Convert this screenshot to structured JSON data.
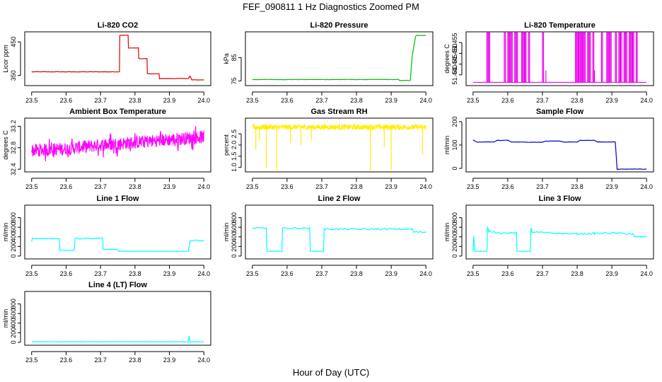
{
  "figure": {
    "title": "FEF_090811  1 Hz Diagnostics Zoomed PM",
    "xlabel": "Hour of Day (UTC)"
  },
  "chart_data": [
    {
      "type": "line",
      "title": "Li-820 CO2",
      "ylabel": "Licor ppm",
      "color": "#dd0000",
      "xlim": [
        23.48,
        24.02
      ],
      "ylim": [
        320,
        480
      ],
      "xticks": [
        "23.5",
        "23.6",
        "23.7",
        "23.8",
        "23.9",
        "24.0"
      ],
      "xtick_values": [
        23.5,
        23.6,
        23.7,
        23.8,
        23.9,
        24.0
      ],
      "yticks": [
        "350",
        "450"
      ],
      "ytick_values": [
        350,
        450
      ],
      "x": [
        23.5,
        23.755,
        23.756,
        23.78,
        23.781,
        23.81,
        23.811,
        23.835,
        23.836,
        23.87,
        23.871,
        23.955,
        23.96,
        23.965,
        24.0
      ],
      "y": [
        361,
        361,
        470,
        470,
        432,
        432,
        400,
        400,
        355,
        355,
        341,
        341,
        348,
        337,
        337
      ]
    },
    {
      "type": "line",
      "title": "Li-820 Pressure",
      "ylabel": "kPa",
      "color": "#00bb00",
      "xlim": [
        23.48,
        24.02
      ],
      "ylim": [
        73,
        96
      ],
      "xticks": [
        "23.5",
        "23.6",
        "23.7",
        "23.8",
        "23.9",
        "24.0"
      ],
      "xtick_values": [
        23.5,
        23.6,
        23.7,
        23.8,
        23.9,
        24.0
      ],
      "yticks": [
        "75",
        "85"
      ],
      "ytick_values": [
        75,
        85
      ],
      "x": [
        23.5,
        23.92,
        23.925,
        23.955,
        23.96,
        23.97,
        23.975,
        24.0
      ],
      "y": [
        75.6,
        75.6,
        75.2,
        75.2,
        85,
        94,
        94.5,
        94.5
      ]
    },
    {
      "type": "line",
      "title": "Li-820 Temperature",
      "ylabel": "degrees C",
      "color": "#ee00ee",
      "xlim": [
        23.48,
        24.02
      ],
      "ylim": [
        51.435,
        51.46
      ],
      "xticks": [
        "23.5",
        "23.6",
        "23.7",
        "23.8",
        "23.9",
        "24.0"
      ],
      "xtick_values": [
        23.5,
        23.6,
        23.7,
        23.8,
        23.9,
        24.0
      ],
      "yticks": [
        "51.440",
        "51.445",
        "51.450",
        "51.455"
      ],
      "ytick_values": [
        51.44,
        51.445,
        51.45,
        51.455
      ],
      "baseline": 51.4365,
      "spike_top": 51.4595,
      "spikes_x": [
        23.54,
        23.545,
        23.59,
        23.6,
        23.605,
        23.61,
        23.62,
        23.625,
        23.64,
        23.645,
        23.65,
        23.66,
        23.7,
        23.795,
        23.8,
        23.805,
        23.81,
        23.815,
        23.82,
        23.83,
        23.835,
        23.845,
        23.87,
        23.885,
        23.89,
        23.895,
        23.91,
        23.92,
        23.925,
        23.935,
        23.94,
        23.95,
        23.955,
        23.96,
        23.97
      ],
      "spikes_short_x": [
        23.71,
        23.85
      ],
      "spike_short_top": 51.442
    },
    {
      "type": "line",
      "title": "Ambient Box Temperature",
      "ylabel": "degrees C",
      "color": "#ff00ff",
      "xlim": [
        23.48,
        24.02
      ],
      "ylim": [
        32.35,
        33.35
      ],
      "xticks": [
        "23.5",
        "23.6",
        "23.7",
        "23.8",
        "23.9",
        "24.0"
      ],
      "xtick_values": [
        23.5,
        23.6,
        23.7,
        23.8,
        23.9,
        24.0
      ],
      "yticks": [
        "32.4",
        "32.8",
        "33.2"
      ],
      "ytick_values": [
        32.4,
        32.8,
        33.2
      ],
      "center_x": [
        23.5,
        23.6,
        23.7,
        23.8,
        23.9,
        24.0
      ],
      "center_y": [
        32.75,
        32.78,
        32.85,
        32.9,
        32.95,
        33.0
      ],
      "amplitude": 0.12
    },
    {
      "type": "line",
      "title": "Gas Stream RH",
      "ylabel": "percent",
      "color": "#ffee00",
      "xlim": [
        23.48,
        24.02
      ],
      "ylim": [
        0.8,
        3.2
      ],
      "xticks": [
        "23.5",
        "23.6",
        "23.7",
        "23.8",
        "23.9",
        "24.0"
      ],
      "xtick_values": [
        23.5,
        23.6,
        23.7,
        23.8,
        23.9,
        24.0
      ],
      "yticks": [
        "1.0",
        "1.5",
        "2.0",
        "2.5"
      ],
      "ytick_values": [
        1.0,
        1.5,
        2.0,
        2.5
      ],
      "level": 2.8,
      "amplitude": 0.12,
      "dips_x": [
        23.51,
        23.52,
        23.54,
        23.57,
        23.61,
        23.64,
        23.67,
        23.84,
        23.88,
        23.9,
        23.99
      ],
      "dips_y": [
        1.8,
        2.2,
        1.0,
        0.85,
        2.1,
        2.0,
        2.2,
        0.85,
        1.9,
        0.9,
        1.6
      ]
    },
    {
      "type": "line",
      "title": "Sample Flow",
      "ylabel": "ml/min",
      "color": "#0000cc",
      "xlim": [
        23.48,
        24.02
      ],
      "ylim": [
        -15,
        215
      ],
      "xticks": [
        "23.5",
        "23.6",
        "23.7",
        "23.8",
        "23.9",
        "24.0"
      ],
      "xtick_values": [
        23.5,
        23.6,
        23.7,
        23.8,
        23.9,
        24.0
      ],
      "yticks": [
        "0",
        "100",
        "200"
      ],
      "ytick_values": [
        0,
        100,
        200
      ],
      "x": [
        23.5,
        23.51,
        23.56,
        23.57,
        23.6,
        23.61,
        23.64,
        23.65,
        23.7,
        23.71,
        23.75,
        23.76,
        23.8,
        23.81,
        23.85,
        23.86,
        23.91,
        23.915,
        24.0
      ],
      "y": [
        122,
        113,
        113,
        120,
        120,
        113,
        113,
        112,
        112,
        117,
        117,
        113,
        113,
        120,
        120,
        113,
        113,
        -3,
        -3
      ]
    },
    {
      "type": "line",
      "title": "Line 1 Flow",
      "ylabel": "ml/min",
      "color": "#00ffff",
      "xlim": [
        23.48,
        24.02
      ],
      "ylim": [
        -60,
        1060
      ],
      "xticks": [
        "23.5",
        "23.6",
        "23.7",
        "23.8",
        "23.9",
        "24.0"
      ],
      "xtick_values": [
        23.5,
        23.6,
        23.7,
        23.8,
        23.9,
        24.0
      ],
      "yticks": [
        "0",
        "200",
        "400",
        "600",
        "800"
      ],
      "ytick_values": [
        0,
        200,
        400,
        600,
        800
      ],
      "x": [
        23.5,
        23.502,
        23.58,
        23.582,
        23.624,
        23.626,
        23.706,
        23.708,
        23.75,
        23.752,
        23.955,
        23.96,
        24.0
      ],
      "y": [
        300,
        360,
        360,
        120,
        120,
        370,
        370,
        140,
        140,
        100,
        100,
        320,
        320
      ]
    },
    {
      "type": "line",
      "title": "Line 2 Flow",
      "ylabel": "ml/min",
      "color": "#00ffff",
      "xlim": [
        23.48,
        24.02
      ],
      "ylim": [
        -60,
        1060
      ],
      "xticks": [
        "23.5",
        "23.6",
        "23.7",
        "23.8",
        "23.9",
        "24.0"
      ],
      "xtick_values": [
        23.5,
        23.6,
        23.7,
        23.8,
        23.9,
        24.0
      ],
      "yticks": [
        "0",
        "200",
        "400",
        "600",
        "800"
      ],
      "ytick_values": [
        0,
        200,
        400,
        600,
        800
      ],
      "x": [
        23.5,
        23.54,
        23.542,
        23.585,
        23.587,
        23.665,
        23.667,
        23.705,
        23.707,
        23.96,
        23.965,
        24.0
      ],
      "y": [
        580,
        580,
        100,
        100,
        580,
        580,
        100,
        100,
        560,
        560,
        500,
        500
      ]
    },
    {
      "type": "line",
      "title": "Line 3 Flow",
      "ylabel": "ml/min",
      "color": "#00ffff",
      "xlim": [
        23.48,
        24.02
      ],
      "ylim": [
        -60,
        1060
      ],
      "xticks": [
        "23.5",
        "23.6",
        "23.7",
        "23.8",
        "23.9",
        "24.0"
      ],
      "xtick_values": [
        23.5,
        23.6,
        23.7,
        23.8,
        23.9,
        24.0
      ],
      "yticks": [
        "0",
        "200",
        "400",
        "600",
        "800"
      ],
      "ytick_values": [
        0,
        200,
        400,
        600,
        800
      ],
      "x": [
        23.5,
        23.502,
        23.505,
        23.54,
        23.542,
        23.545,
        23.58,
        23.625,
        23.627,
        23.665,
        23.667,
        23.67,
        23.75,
        23.8,
        23.85,
        23.9,
        23.96,
        23.965,
        24.0
      ],
      "y": [
        100,
        420,
        100,
        100,
        600,
        520,
        480,
        480,
        100,
        100,
        580,
        500,
        470,
        460,
        470,
        480,
        460,
        400,
        400
      ]
    },
    {
      "type": "line",
      "title": "Line 4 (LT) Flow",
      "ylabel": "ml/min",
      "color": "#00ffff",
      "xlim": [
        23.48,
        24.02
      ],
      "ylim": [
        -60,
        1060
      ],
      "xticks": [
        "23.5",
        "23.6",
        "23.7",
        "23.8",
        "23.9",
        "24.0"
      ],
      "xtick_values": [
        23.5,
        23.6,
        23.7,
        23.8,
        23.9,
        24.0
      ],
      "yticks": [
        "0",
        "200",
        "400",
        "600",
        "800"
      ],
      "ytick_values": [
        0,
        200,
        400,
        600,
        800
      ],
      "x": [
        23.5,
        23.955,
        23.957,
        23.96,
        23.962,
        24.0
      ],
      "y": [
        10,
        10,
        130,
        10,
        10,
        10
      ]
    }
  ]
}
